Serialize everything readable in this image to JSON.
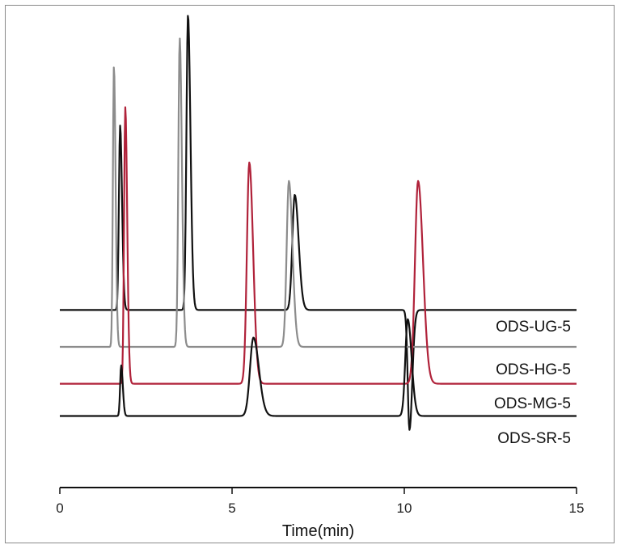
{
  "chart_data": {
    "type": "line",
    "xlabel": "Time(min)",
    "ylabel": "",
    "xlim": [
      0,
      15
    ],
    "x_ticks": [
      "0",
      "5",
      "10",
      "15"
    ],
    "grid": false,
    "series": [
      {
        "name": "ODS-UG-5",
        "color": "#111111",
        "baseline": 0.38,
        "peaks": [
          {
            "rt": 1.75,
            "height": 0.78,
            "width": 0.035
          },
          {
            "rt": 3.72,
            "height": 1.02,
            "width": 0.045
          },
          {
            "rt": 6.82,
            "height": 0.63,
            "width": 0.07
          },
          {
            "rt": 10.15,
            "height": 0.12,
            "width": 0.05
          }
        ],
        "drift_after": 0.0
      },
      {
        "name": "ODS-HG-5",
        "color": "#8c8c8c",
        "baseline": 0.3,
        "peaks": [
          {
            "rt": 1.57,
            "height": 0.91,
            "width": 0.03
          },
          {
            "rt": 3.48,
            "height": 0.97,
            "width": 0.04
          },
          {
            "rt": 6.65,
            "height": 0.66,
            "width": 0.065
          }
        ],
        "drift_after": 0.0
      },
      {
        "name": "ODS-MG-5",
        "color": "#b0223a",
        "baseline": 0.22,
        "peaks": [
          {
            "rt": 1.9,
            "height": 0.82,
            "width": 0.035
          },
          {
            "rt": 5.5,
            "height": 0.7,
            "width": 0.07
          },
          {
            "rt": 10.4,
            "height": 0.66,
            "width": 0.09
          }
        ],
        "drift_after": 0.0
      },
      {
        "name": "ODS-SR-5",
        "color": "#111111",
        "baseline": 0.15,
        "peaks": [
          {
            "rt": 1.78,
            "height": 0.26,
            "width": 0.03
          },
          {
            "rt": 5.62,
            "height": 0.32,
            "width": 0.1
          },
          {
            "rt": 10.1,
            "height": 0.36,
            "width": 0.07
          }
        ],
        "drift_after": 0.0
      }
    ]
  }
}
